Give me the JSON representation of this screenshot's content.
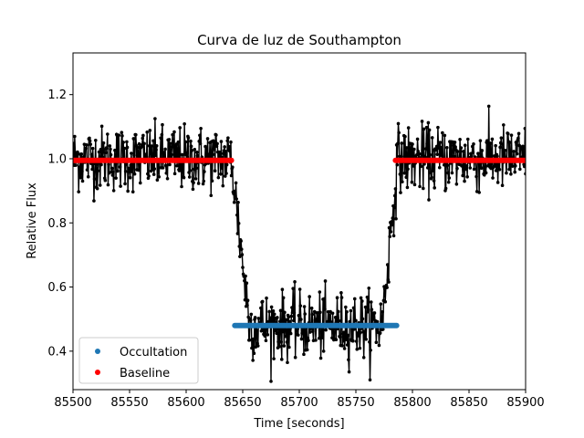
{
  "chart_data": {
    "type": "scatter",
    "title": "Curva de luz de Southampton",
    "xlabel": "Time [seconds]",
    "ylabel": "Relative Flux",
    "xlim": [
      85500,
      85900
    ],
    "ylim": [
      0.28,
      1.33
    ],
    "xticks": [
      85500,
      85550,
      85600,
      85650,
      85700,
      85750,
      85800,
      85850,
      85900
    ],
    "yticks": [
      0.4,
      0.6,
      0.8,
      1.0,
      1.2
    ],
    "xtick_labels": [
      "85500",
      "85550",
      "85600",
      "85650",
      "85700",
      "85750",
      "85800",
      "85850",
      "85900"
    ],
    "ytick_labels": [
      "0.4",
      "0.6",
      "0.8",
      "1.0",
      "1.2"
    ],
    "grid": false,
    "legend": {
      "location": "lower-left",
      "entries": [
        {
          "label": "Occultation",
          "color": "#1f77b4"
        },
        {
          "label": "Baseline",
          "color": "#ff0000"
        }
      ]
    },
    "series": [
      {
        "name": "data",
        "color": "#000000",
        "style": "line-with-markers",
        "ingress_start": 85640,
        "ingress_end": 85656,
        "egress_start": 85773,
        "egress_end": 85787,
        "out_of_transit_level": 1.0,
        "in_transit_level": 0.48,
        "noise_scatter": 0.05,
        "sample_spacing": 0.5
      },
      {
        "name": "Occultation",
        "color": "#1f77b4",
        "style": "markers",
        "x_range": [
          85643,
          85786
        ],
        "y": 0.48
      },
      {
        "name": "Baseline",
        "color": "#ff0000",
        "style": "markers",
        "segments": [
          {
            "x_range": [
              85500,
              85640
            ],
            "y": 0.995
          },
          {
            "x_range": [
              85785,
              85900
            ],
            "y": 0.995
          }
        ]
      }
    ]
  }
}
